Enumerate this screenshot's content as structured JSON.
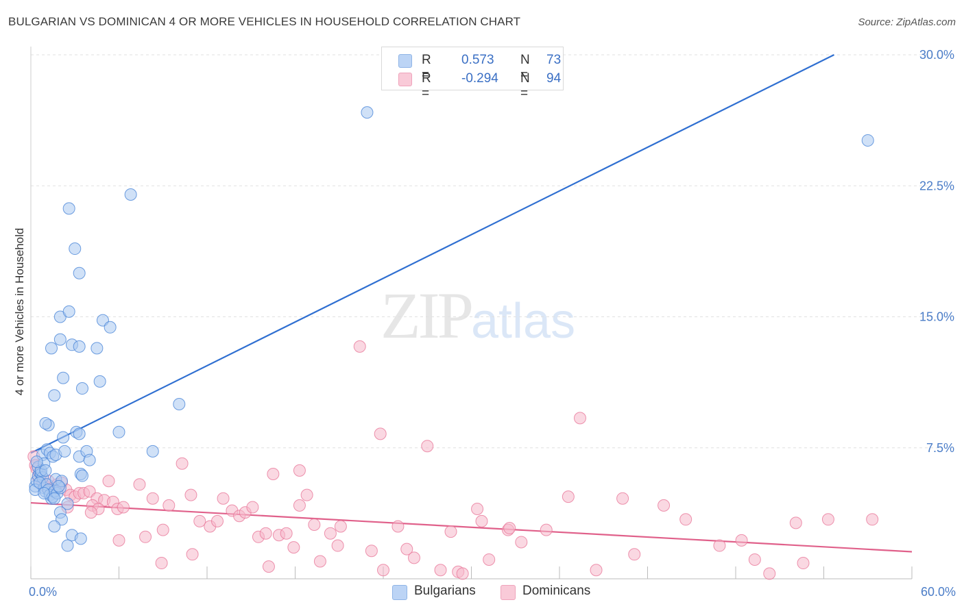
{
  "title": "BULGARIAN VS DOMINICAN 4 OR MORE VEHICLES IN HOUSEHOLD CORRELATION CHART",
  "source": "Source: ZipAtlas.com",
  "watermark": {
    "zip": "ZIP",
    "atlas": "atlas"
  },
  "legend": {
    "rows": [
      {
        "r_label": "R =",
        "r_value": "0.573",
        "n_label": "N =",
        "n_value": "73",
        "color": "#a9c8f0"
      },
      {
        "r_label": "R =",
        "r_value": "-0.294",
        "n_label": "N =",
        "n_value": "94",
        "color": "#f5b8cb"
      }
    ]
  },
  "bottom_legend": [
    {
      "label": "Bulgarians",
      "color": "#a9c8f0"
    },
    {
      "label": "Dominicans",
      "color": "#f5b8cb"
    }
  ],
  "chart_data": {
    "type": "scatter",
    "title": "BULGARIAN VS DOMINICAN 4 OR MORE VEHICLES IN HOUSEHOLD CORRELATION CHART",
    "xlabel": "",
    "ylabel": "4 or more Vehicles in Household",
    "xlim": [
      0,
      60
    ],
    "ylim": [
      0,
      30
    ],
    "x_tick_labels": [
      {
        "value": 0,
        "label": "0.0%"
      },
      {
        "value": 60,
        "label": "60.0%"
      }
    ],
    "y_tick_labels": [
      {
        "value": 7.5,
        "label": "7.5%"
      },
      {
        "value": 15,
        "label": "15.0%"
      },
      {
        "value": 22.5,
        "label": "22.5%"
      },
      {
        "value": 30,
        "label": "30.0%"
      }
    ],
    "grid": true,
    "legend_position": "top-center",
    "series": [
      {
        "name": "Bulgarians",
        "color": "#4a86d8",
        "fill": "#a9c8f0",
        "line_color": "#2f6fd1",
        "trend": {
          "x": [
            0,
            54.7
          ],
          "y": [
            7.2,
            30.0
          ]
        },
        "points": [
          [
            0.3,
            5.3
          ],
          [
            0.4,
            5.6
          ],
          [
            0.5,
            5.9
          ],
          [
            0.6,
            6.1
          ],
          [
            0.5,
            6.4
          ],
          [
            0.7,
            6.0
          ],
          [
            0.8,
            5.8
          ],
          [
            0.3,
            5.1
          ],
          [
            0.9,
            5.2
          ],
          [
            1.0,
            5.0
          ],
          [
            0.6,
            5.5
          ],
          [
            0.7,
            6.2
          ],
          [
            1.1,
            5.4
          ],
          [
            1.2,
            5.1
          ],
          [
            1.3,
            4.8
          ],
          [
            1.4,
            4.6
          ],
          [
            1.5,
            4.7
          ],
          [
            1.6,
            5.0
          ],
          [
            1.8,
            4.9
          ],
          [
            2.0,
            5.2
          ],
          [
            1.7,
            5.7
          ],
          [
            2.1,
            5.6
          ],
          [
            0.8,
            7.1
          ],
          [
            0.9,
            6.6
          ],
          [
            1.1,
            7.4
          ],
          [
            1.3,
            7.2
          ],
          [
            1.5,
            7.0
          ],
          [
            1.7,
            7.1
          ],
          [
            2.3,
            7.3
          ],
          [
            3.3,
            7.0
          ],
          [
            3.8,
            7.3
          ],
          [
            4.0,
            6.8
          ],
          [
            3.4,
            6.0
          ],
          [
            3.5,
            5.9
          ],
          [
            2.5,
            4.3
          ],
          [
            2.0,
            3.8
          ],
          [
            2.1,
            3.4
          ],
          [
            1.6,
            3.0
          ],
          [
            2.8,
            2.5
          ],
          [
            3.4,
            2.3
          ],
          [
            2.5,
            1.9
          ],
          [
            1.2,
            8.8
          ],
          [
            1.0,
            8.9
          ],
          [
            2.2,
            8.1
          ],
          [
            3.1,
            8.4
          ],
          [
            3.3,
            8.3
          ],
          [
            6.0,
            8.4
          ],
          [
            8.3,
            7.3
          ],
          [
            10.1,
            10.0
          ],
          [
            1.6,
            10.5
          ],
          [
            2.2,
            11.5
          ],
          [
            3.5,
            10.9
          ],
          [
            4.7,
            11.3
          ],
          [
            1.4,
            13.2
          ],
          [
            2.0,
            13.7
          ],
          [
            2.8,
            13.4
          ],
          [
            3.3,
            13.3
          ],
          [
            4.5,
            13.2
          ],
          [
            2.0,
            15.0
          ],
          [
            2.6,
            15.3
          ],
          [
            4.9,
            14.8
          ],
          [
            5.4,
            14.4
          ],
          [
            3.3,
            17.5
          ],
          [
            3.0,
            18.9
          ],
          [
            2.6,
            21.2
          ],
          [
            6.8,
            22.0
          ],
          [
            22.9,
            26.7
          ],
          [
            57.0,
            25.1
          ],
          [
            0.4,
            6.7
          ],
          [
            1.0,
            6.2
          ],
          [
            1.9,
            5.3
          ],
          [
            0.9,
            4.9
          ],
          [
            1.6,
            4.6
          ]
        ]
      },
      {
        "name": "Dominicans",
        "color": "#e8789a",
        "fill": "#f5b8cb",
        "line_color": "#e0608a",
        "trend": {
          "x": [
            0,
            60
          ],
          "y": [
            4.35,
            1.55
          ]
        },
        "points": [
          [
            0.2,
            7.0
          ],
          [
            0.3,
            6.5
          ],
          [
            0.4,
            6.3
          ],
          [
            0.6,
            6.0
          ],
          [
            0.5,
            5.8
          ],
          [
            0.8,
            5.5
          ],
          [
            1.0,
            5.3
          ],
          [
            1.2,
            5.6
          ],
          [
            1.5,
            5.2
          ],
          [
            1.8,
            5.4
          ],
          [
            2.1,
            5.5
          ],
          [
            2.4,
            5.1
          ],
          [
            2.7,
            4.8
          ],
          [
            3.0,
            4.7
          ],
          [
            3.3,
            4.9
          ],
          [
            3.6,
            4.9
          ],
          [
            4.0,
            5.0
          ],
          [
            4.5,
            4.6
          ],
          [
            5.0,
            4.5
          ],
          [
            5.3,
            5.6
          ],
          [
            5.6,
            4.4
          ],
          [
            4.2,
            4.2
          ],
          [
            4.6,
            4.0
          ],
          [
            5.9,
            4.0
          ],
          [
            6.3,
            4.1
          ],
          [
            2.5,
            4.1
          ],
          [
            7.4,
            5.4
          ],
          [
            8.3,
            4.6
          ],
          [
            9.4,
            4.2
          ],
          [
            10.3,
            6.6
          ],
          [
            10.9,
            4.8
          ],
          [
            11.5,
            3.3
          ],
          [
            12.2,
            3.0
          ],
          [
            12.7,
            3.3
          ],
          [
            13.1,
            4.6
          ],
          [
            13.7,
            3.9
          ],
          [
            14.2,
            3.6
          ],
          [
            14.6,
            3.8
          ],
          [
            15.1,
            4.1
          ],
          [
            15.5,
            2.4
          ],
          [
            16.0,
            2.6
          ],
          [
            16.5,
            6.0
          ],
          [
            16.9,
            2.5
          ],
          [
            17.4,
            2.6
          ],
          [
            17.9,
            1.8
          ],
          [
            18.3,
            6.2
          ],
          [
            18.8,
            4.8
          ],
          [
            18.3,
            4.2
          ],
          [
            19.3,
            3.1
          ],
          [
            19.7,
            1.0
          ],
          [
            20.4,
            2.6
          ],
          [
            20.9,
            1.9
          ],
          [
            21.1,
            3.0
          ],
          [
            22.4,
            13.3
          ],
          [
            23.2,
            1.6
          ],
          [
            23.8,
            8.3
          ],
          [
            24.0,
            0.5
          ],
          [
            25.0,
            3.0
          ],
          [
            25.6,
            1.7
          ],
          [
            26.1,
            1.2
          ],
          [
            27.0,
            7.6
          ],
          [
            27.9,
            0.5
          ],
          [
            28.6,
            2.7
          ],
          [
            29.1,
            0.4
          ],
          [
            29.4,
            0.3
          ],
          [
            30.4,
            4.0
          ],
          [
            30.7,
            3.3
          ],
          [
            31.2,
            1.1
          ],
          [
            32.5,
            2.8
          ],
          [
            32.6,
            2.9
          ],
          [
            33.4,
            2.1
          ],
          [
            35.1,
            2.8
          ],
          [
            37.4,
            9.2
          ],
          [
            36.6,
            4.7
          ],
          [
            38.5,
            0.5
          ],
          [
            40.3,
            4.6
          ],
          [
            41.1,
            1.4
          ],
          [
            43.1,
            4.2
          ],
          [
            44.6,
            3.4
          ],
          [
            46.9,
            1.9
          ],
          [
            48.4,
            2.2
          ],
          [
            49.3,
            1.1
          ],
          [
            50.3,
            0.3
          ],
          [
            52.1,
            3.2
          ],
          [
            52.6,
            0.9
          ],
          [
            54.3,
            3.4
          ],
          [
            57.3,
            3.4
          ],
          [
            11.0,
            1.4
          ],
          [
            8.9,
            0.9
          ],
          [
            7.8,
            2.4
          ],
          [
            6.0,
            2.2
          ],
          [
            4.1,
            3.8
          ],
          [
            9.0,
            2.8
          ],
          [
            16.2,
            0.7
          ]
        ]
      }
    ]
  }
}
